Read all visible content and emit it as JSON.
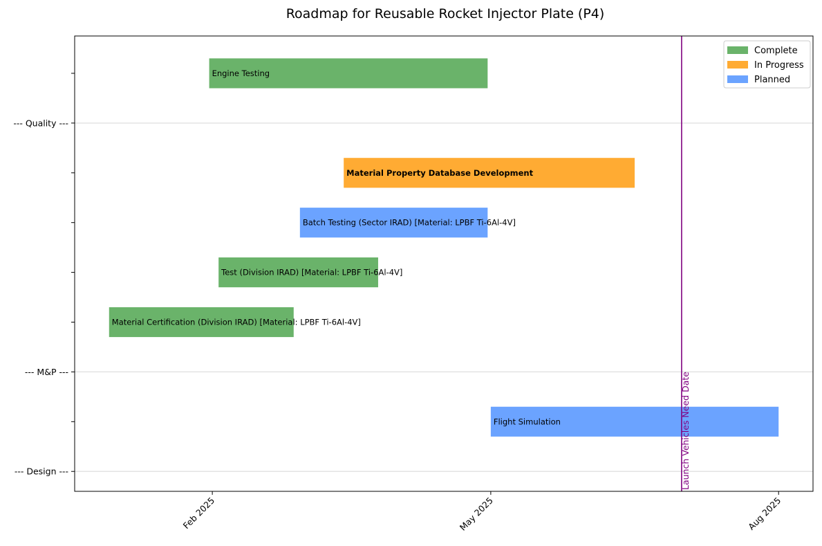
{
  "chart_data": {
    "type": "gantt",
    "title": "Roadmap for Reusable Rocket Injector Plate (P4)",
    "xlabel": "",
    "ylabel": "",
    "x_ticks": [
      {
        "label": "Feb 2025",
        "date": "2025-02-01"
      },
      {
        "label": "May 2025",
        "date": "2025-05-01"
      },
      {
        "label": "Aug 2025",
        "date": "2025-08-01"
      }
    ],
    "xlim": [
      "2024-12-19",
      "2025-08-12"
    ],
    "y_sections": [
      {
        "label": "--- Quality ---",
        "row": 7
      },
      {
        "label": "--- M&P ---",
        "row": 2
      },
      {
        "label": "--- Design ---",
        "row": 0
      }
    ],
    "ylim": [
      -0.4,
      8.75
    ],
    "tasks": [
      {
        "label": "Engine Testing",
        "row": 8,
        "start": "2025-01-31",
        "end": "2025-04-30",
        "status": "Complete",
        "bold": false
      },
      {
        "label": "Material Property Database Development",
        "row": 6,
        "start": "2025-03-15",
        "end": "2025-06-16",
        "status": "In Progress",
        "bold": true
      },
      {
        "label": "Batch Testing (Sector IRAD) [Material: LPBF Ti-6Al-4V]",
        "row": 5,
        "start": "2025-03-01",
        "end": "2025-04-30",
        "status": "Planned",
        "bold": false
      },
      {
        "label": "Test (Division IRAD) [Material: LPBF Ti-6Al-4V]",
        "row": 4,
        "start": "2025-02-03",
        "end": "2025-03-26",
        "status": "Complete",
        "bold": false
      },
      {
        "label": "Material Certification (Division IRAD) [Material: LPBF Ti-6Al-4V]",
        "row": 3,
        "start": "2024-12-30",
        "end": "2025-02-27",
        "status": "Complete",
        "bold": false
      },
      {
        "label": "Flight Simulation",
        "row": 1,
        "start": "2025-05-01",
        "end": "2025-08-01",
        "status": "Planned",
        "bold": false
      }
    ],
    "milestones": [
      {
        "label": "Launch Vehicles Need Date",
        "date": "2025-07-01",
        "color": "#800080"
      }
    ],
    "legend": {
      "position": "top-right",
      "entries": [
        {
          "name": "Complete",
          "color": "#6ab36a"
        },
        {
          "name": "In Progress",
          "color": "#ffab33"
        },
        {
          "name": "Planned",
          "color": "#6ba3ff"
        }
      ]
    },
    "grid": "horizontal at section rows"
  }
}
